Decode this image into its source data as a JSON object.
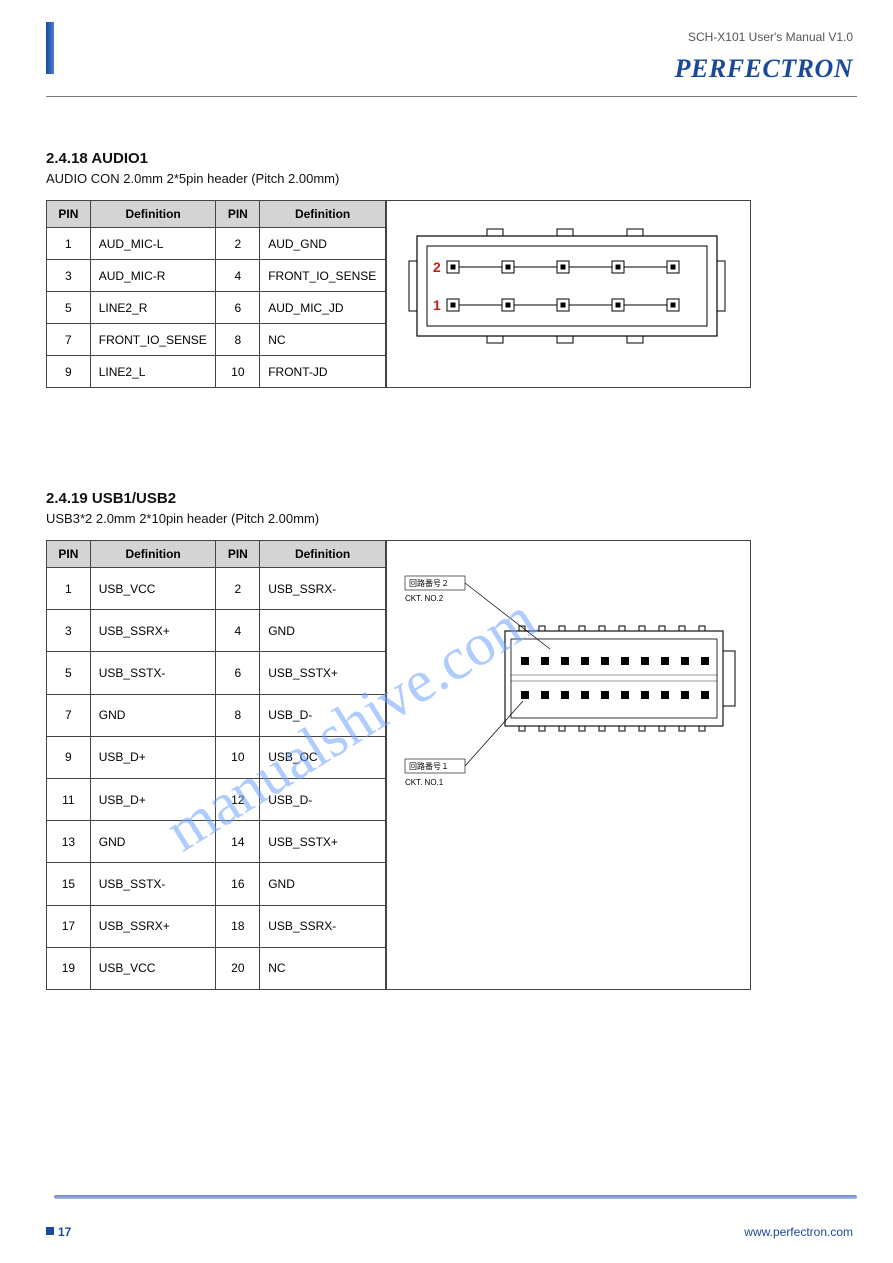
{
  "brand": "PERFECTRON",
  "doc_title": "SCH-X101 User's Manual  V1.0",
  "footer": {
    "page": "17",
    "url": "www.perfectron.com"
  },
  "watermark": "manualshive.com",
  "colors": {
    "accent": "#1b4a9b",
    "table_header_bg": "#d4d4d4",
    "border": "#444444",
    "watermark": "#6fa4ff",
    "pin_label": "#c11d1d"
  },
  "audio": {
    "heading": "2.4.18 AUDIO1",
    "sub": "AUDIO CON 2.0mm 2*5pin header (Pitch 2.00mm)",
    "headers": [
      "PIN",
      "Definition",
      "PIN",
      "Definition"
    ],
    "rows": [
      [
        "1",
        "AUD_MIC-L",
        "2",
        "AUD_GND"
      ],
      [
        "3",
        "AUD_MIC-R",
        "4",
        "FRONT_IO_SENSE"
      ],
      [
        "5",
        "LINE2_R",
        "6",
        "AUD_MIC_JD"
      ],
      [
        "7",
        "FRONT_IO_SENSE",
        "8",
        "NC"
      ],
      [
        "9",
        "LINE2_L",
        "10",
        "FRONT-JD"
      ]
    ],
    "figure": {
      "pin_labels": [
        "2",
        "1"
      ]
    }
  },
  "usb": {
    "heading": "2.4.19 USB1/USB2",
    "sub": "USB3*2 2.0mm 2*10pin header (Pitch 2.00mm)",
    "headers": [
      "PIN",
      "Definition",
      "PIN",
      "Definition"
    ],
    "rows": [
      [
        "1",
        "USB_VCC",
        "2",
        "USB_SSRX-"
      ],
      [
        "3",
        "USB_SSRX+",
        "4",
        "GND"
      ],
      [
        "5",
        "USB_SSTX-",
        "6",
        "USB_SSTX+"
      ],
      [
        "7",
        "GND",
        "8",
        "USB_D-"
      ],
      [
        "9",
        "USB_D+",
        "10",
        "USB_OC"
      ],
      [
        "11",
        "USB_D+",
        "12",
        "USB_D-"
      ],
      [
        "13",
        "GND",
        "14",
        "USB_SSTX+"
      ],
      [
        "15",
        "USB_SSTX-",
        "16",
        "GND"
      ],
      [
        "17",
        "USB_SSRX+",
        "18",
        "USB_SSRX-"
      ],
      [
        "19",
        "USB_VCC",
        "20",
        "NC"
      ]
    ],
    "figure": {
      "labels": [
        {
          "jp": "回路番号２",
          "en": "CKT. NO.2"
        },
        {
          "jp": "回路番号１",
          "en": "CKT. NO.1"
        }
      ]
    }
  }
}
